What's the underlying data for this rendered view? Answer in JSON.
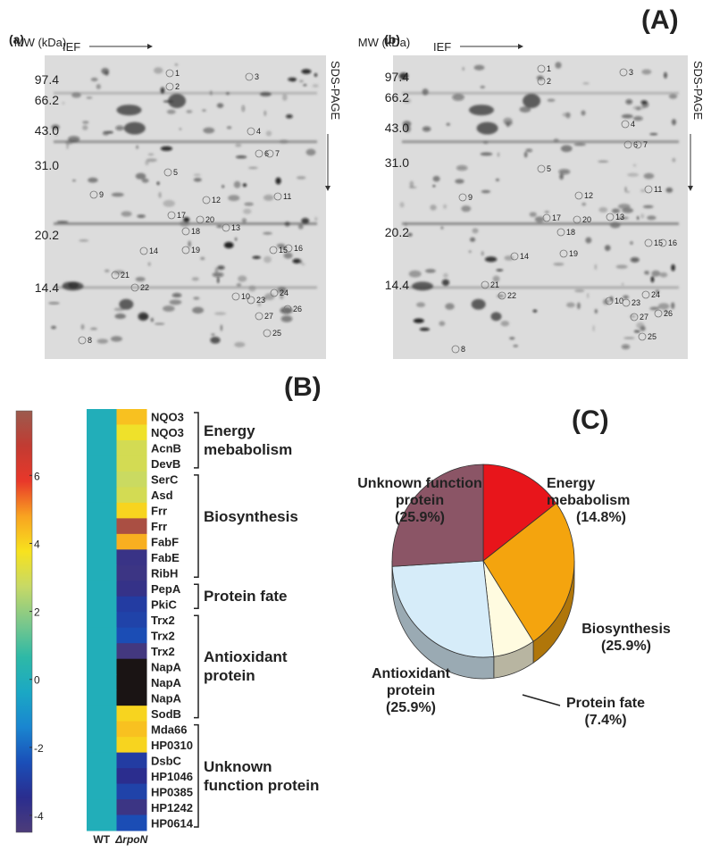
{
  "panel_A": {
    "label": "(A)",
    "gels": [
      {
        "label": "(a)",
        "mw_title": "MW (kDa)",
        "mw_markers": [
          "97.4",
          "66.2",
          "43.0",
          "31.0",
          "20.2",
          "14.4"
        ],
        "x_axis": "IEF",
        "y_axis": "SDS-PAGE",
        "spots": [
          "1",
          "2",
          "3",
          "4",
          "5",
          "6",
          "7",
          "8",
          "9",
          "10",
          "11",
          "12",
          "13",
          "14",
          "15",
          "16",
          "17",
          "18",
          "19",
          "20",
          "21",
          "22",
          "23",
          "24",
          "25",
          "26",
          "27"
        ]
      },
      {
        "label": "(b)",
        "mw_title": "MW (kDa)",
        "mw_markers": [
          "97.4",
          "66.2",
          "43.0",
          "31.0",
          "20.2",
          "14.4"
        ],
        "x_axis": "IEF",
        "y_axis": "SDS-PAGE",
        "spots": [
          "1",
          "2",
          "3",
          "4",
          "5",
          "6",
          "7",
          "8",
          "9",
          "10",
          "11",
          "12",
          "13",
          "14",
          "15",
          "16",
          "17",
          "18",
          "19",
          "20",
          "21",
          "22",
          "23",
          "24",
          "25",
          "26",
          "27"
        ]
      }
    ]
  },
  "panel_B": {
    "label": "(B)",
    "type": "heatmap",
    "columns": [
      "WT",
      "ΔrpoN"
    ],
    "clim": [
      -4.5,
      7.9
    ],
    "colorscale": [
      "#4d3c79",
      "#2a2d8f",
      "#1a4fb8",
      "#1a86d0",
      "#1ba8c4",
      "#2eb9a6",
      "#7ec88a",
      "#c7d966",
      "#f7e21e",
      "#f8a321",
      "#e8382a",
      "#c23b32",
      "#9b5b4e"
    ],
    "colorbar_ticks": [
      6,
      4,
      2,
      0,
      -2,
      -4
    ],
    "missing_color": "#1a1414",
    "groups": [
      {
        "label": "Energy mebabolism",
        "genes": [
          "NQO3",
          "NQO3",
          "AcnB",
          "DevB"
        ],
        "values": [
          [
            0,
            4.3
          ],
          [
            0,
            3.6
          ],
          [
            0,
            3
          ],
          [
            0,
            3
          ]
        ]
      },
      {
        "label": "Biosynthesis",
        "genes": [
          "SerC",
          "Asd",
          "Frr",
          "Frr",
          "FabF",
          "FabE",
          "RibH"
        ],
        "values": [
          [
            0,
            2.8
          ],
          [
            0,
            3
          ],
          [
            0,
            4
          ],
          [
            0,
            7.5
          ],
          [
            0,
            4.6
          ],
          [
            0,
            -3.9
          ],
          [
            0,
            -4
          ]
        ]
      },
      {
        "label": "Protein fate",
        "genes": [
          "PepA",
          "PkiC"
        ],
        "values": [
          [
            0,
            -3.8
          ],
          [
            0,
            -3
          ]
        ]
      },
      {
        "label": "Antioxidant protein",
        "genes": [
          "Trx2",
          "Trx2",
          "Trx2",
          "NapA",
          "NapA",
          "NapA",
          "SodB"
        ],
        "values": [
          [
            0,
            -2.8
          ],
          [
            0,
            -2.5
          ],
          [
            0,
            -4.2
          ],
          [
            0,
            null
          ],
          [
            0,
            null
          ],
          [
            0,
            null
          ],
          [
            0,
            4
          ]
        ]
      },
      {
        "label": "Unknown function protein",
        "genes": [
          "Mda66",
          "HP0310",
          "DsbC",
          "HP1046",
          "HP0385",
          "HP1242",
          "HP0614"
        ],
        "values": [
          [
            0,
            4.3
          ],
          [
            0,
            4
          ],
          [
            0,
            -3
          ],
          [
            0,
            -3.5
          ],
          [
            0,
            -2.8
          ],
          [
            0,
            -4
          ],
          [
            0,
            -2.5
          ]
        ]
      }
    ]
  },
  "chart_data": {
    "type": "pie",
    "label": "(C)",
    "categories": [
      "Energy mebabolism",
      "Biosynthesis",
      "Protein fate",
      "Antioxidant protein",
      "Unknown function protein"
    ],
    "values": [
      14.8,
      25.9,
      7.4,
      25.9,
      25.9
    ],
    "value_labels": [
      "(14.8%)",
      "(25.9%)",
      "(7.4%)",
      "(25.9%)",
      "(25.9%)"
    ],
    "colors": [
      "#e8151b",
      "#f4a40e",
      "#fffbe0",
      "#d6ecf9",
      "#8b5566"
    ]
  }
}
